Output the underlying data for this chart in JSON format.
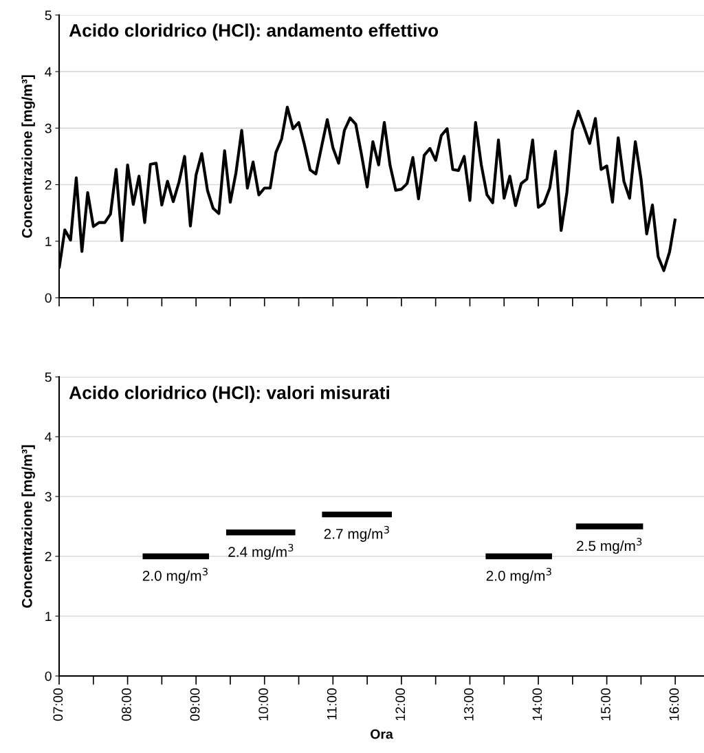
{
  "chart_data": [
    {
      "type": "line",
      "title": "Acido cloridrico (HCl): andamento effettivo",
      "ylabel": "Concentrazione [mg/m³]",
      "series": [
        {
          "color": "#000000",
          "x": [
            7,
            7.083,
            7.167,
            7.25,
            7.333,
            7.417,
            7.5,
            7.583,
            7.667,
            7.75,
            7.833,
            7.917,
            8,
            8.083,
            8.167,
            8.25,
            8.333,
            8.417,
            8.5,
            8.583,
            8.667,
            8.75,
            8.833,
            8.917,
            9,
            9.083,
            9.167,
            9.25,
            9.333,
            9.417,
            9.5,
            9.583,
            9.667,
            9.75,
            9.833,
            9.917,
            10,
            10.083,
            10.167,
            10.25,
            10.333,
            10.417,
            10.5,
            10.583,
            10.667,
            10.75,
            10.833,
            10.917,
            11,
            11.083,
            11.167,
            11.25,
            11.333,
            11.417,
            11.5,
            11.583,
            11.667,
            11.75,
            11.833,
            11.917,
            12,
            12.083,
            12.167,
            12.25,
            12.333,
            12.417,
            12.5,
            12.583,
            12.667,
            12.75,
            12.833,
            12.917,
            13,
            13.083,
            13.167,
            13.25,
            13.333,
            13.417,
            13.5,
            13.583,
            13.667,
            13.75,
            13.833,
            13.917,
            14,
            14.083,
            14.167,
            14.25,
            14.333,
            14.417,
            14.5,
            14.583,
            14.667,
            14.75,
            14.833,
            14.917,
            15,
            15.083,
            15.167,
            15.25,
            15.333,
            15.417,
            15.5,
            15.583,
            15.667,
            15.75,
            15.833,
            15.917,
            16
          ],
          "values": [
            0.52,
            1.2,
            1.02,
            2.12,
            0.82,
            1.86,
            1.26,
            1.33,
            1.33,
            1.48,
            2.27,
            1.01,
            2.35,
            1.65,
            2.15,
            1.33,
            2.36,
            2.38,
            1.64,
            2.06,
            1.7,
            2.04,
            2.5,
            1.27,
            2.17,
            2.55,
            1.9,
            1.58,
            1.49,
            2.6,
            1.69,
            2.21,
            2.96,
            1.94,
            2.4,
            1.82,
            1.94,
            1.94,
            2.57,
            2.81,
            3.37,
            2.99,
            3.1,
            2.71,
            2.26,
            2.19,
            2.67,
            3.15,
            2.65,
            2.38,
            2.96,
            3.18,
            3.07,
            2.53,
            1.96,
            2.76,
            2.35,
            3.1,
            2.35,
            1.9,
            1.92,
            2.02,
            2.48,
            1.75,
            2.52,
            2.64,
            2.43,
            2.87,
            2.99,
            2.27,
            2.25,
            2.5,
            1.72,
            3.1,
            2.35,
            1.82,
            1.68,
            2.79,
            1.76,
            2.15,
            1.63,
            2.02,
            2.1,
            2.79,
            1.6,
            1.67,
            1.94,
            2.59,
            1.19,
            1.86,
            2.96,
            3.3,
            3.02,
            2.73,
            3.17,
            2.27,
            2.33,
            1.69,
            2.83,
            2.06,
            1.76,
            2.76,
            2.1,
            1.13,
            1.64,
            0.73,
            0.48,
            0.81,
            1.4
          ]
        }
      ],
      "xlim": [
        7,
        16.42
      ],
      "ylim": [
        0,
        5
      ],
      "yticks": [
        0,
        1,
        2,
        3,
        4,
        5
      ],
      "xticks": [
        {
          "value": 7,
          "label": null
        },
        {
          "value": 7.5,
          "label": null
        },
        {
          "value": 8,
          "label": null
        },
        {
          "value": 8.5,
          "label": null
        },
        {
          "value": 9,
          "label": null
        },
        {
          "value": 9.5,
          "label": null
        },
        {
          "value": 10,
          "label": null
        },
        {
          "value": 10.5,
          "label": null
        },
        {
          "value": 11,
          "label": null
        },
        {
          "value": 11.5,
          "label": null
        },
        {
          "value": 12,
          "label": null
        },
        {
          "value": 12.5,
          "label": null
        },
        {
          "value": 13,
          "label": null
        },
        {
          "value": 13.5,
          "label": null
        },
        {
          "value": 14,
          "label": null
        },
        {
          "value": 14.5,
          "label": null
        },
        {
          "value": 15,
          "label": null
        },
        {
          "value": 15.5,
          "label": null
        },
        {
          "value": 16,
          "label": null
        }
      ],
      "tick_labels": "y",
      "grid": "y",
      "marker": "none",
      "line_style": "solid",
      "legend": false
    },
    {
      "type": "line",
      "title": "Acido cloridrico (HCl): valori misurati",
      "ylabel": "Concentrazione [mg/m³]",
      "xlabel": "Ora",
      "series": [
        {
          "color": "#000000",
          "x": [
            8.22,
            9.19
          ],
          "values": [
            2.0,
            2.0
          ]
        },
        {
          "color": "#000000",
          "x": [
            9.44,
            10.45
          ],
          "values": [
            2.4,
            2.4
          ]
        },
        {
          "color": "#000000",
          "x": [
            10.84,
            11.86
          ],
          "values": [
            2.7,
            2.7
          ]
        },
        {
          "color": "#000000",
          "x": [
            13.23,
            14.2
          ],
          "values": [
            2.0,
            2.0
          ]
        },
        {
          "color": "#000000",
          "x": [
            14.55,
            15.53
          ],
          "values": [
            2.5,
            2.5
          ]
        }
      ],
      "annotations": [
        {
          "text": "2.0 mg/m$^{3}$",
          "x": 8.7,
          "y": 2.0
        },
        {
          "text": "2.4 mg/m$^{3}$",
          "x": 9.95,
          "y": 2.4
        },
        {
          "text": "2.7 mg/m$^{3}$",
          "x": 11.35,
          "y": 2.7
        },
        {
          "text": "2.0 mg/m$^{3}$",
          "x": 13.72,
          "y": 2.0
        },
        {
          "text": "2.5 mg/m$^{3}$",
          "x": 15.04,
          "y": 2.5
        }
      ],
      "xlim": [
        7,
        16.42
      ],
      "ylim": [
        0,
        5
      ],
      "yticks": [
        0,
        1,
        2,
        3,
        4,
        5
      ],
      "xticks": [
        {
          "value": 7,
          "label": "07:00"
        },
        {
          "value": 7.5,
          "label": null
        },
        {
          "value": 8,
          "label": "08:00"
        },
        {
          "value": 8.5,
          "label": null
        },
        {
          "value": 9,
          "label": "09:00"
        },
        {
          "value": 9.5,
          "label": null
        },
        {
          "value": 10,
          "label": "10:00"
        },
        {
          "value": 10.5,
          "label": null
        },
        {
          "value": 11,
          "label": "11:00"
        },
        {
          "value": 11.5,
          "label": null
        },
        {
          "value": 12,
          "label": "12:00"
        },
        {
          "value": 12.5,
          "label": null
        },
        {
          "value": 13,
          "label": "13:00"
        },
        {
          "value": 13.5,
          "label": null
        },
        {
          "value": 14,
          "label": "14:00"
        },
        {
          "value": 14.5,
          "label": null
        },
        {
          "value": 15,
          "label": "15:00"
        },
        {
          "value": 15.5,
          "label": null
        },
        {
          "value": 16,
          "label": "16:00"
        }
      ],
      "grid": "y",
      "marker": "none",
      "line_style": "solid",
      "legend": false
    }
  ]
}
